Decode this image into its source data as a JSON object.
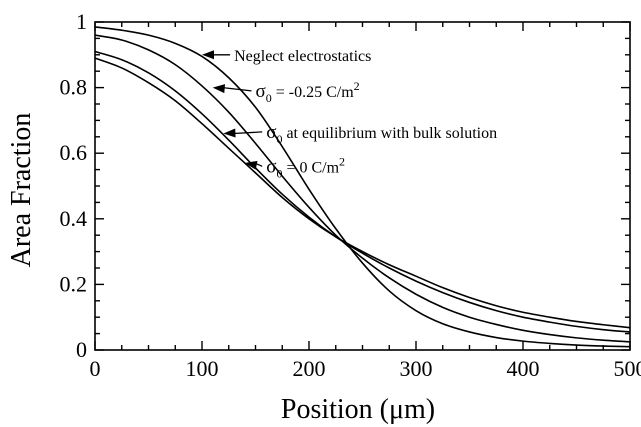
{
  "chart_data": {
    "type": "line",
    "xlabel": "Position (μm)",
    "ylabel": "Area Fraction",
    "xlim": [
      0,
      500
    ],
    "ylim": [
      0,
      1
    ],
    "xticks": [
      "0",
      "100",
      "200",
      "300",
      "400",
      "500"
    ],
    "yticks": [
      "0",
      "0.2",
      "0.4",
      "0.6",
      "0.8",
      "1"
    ],
    "xtick_values": [
      0,
      100,
      200,
      300,
      400,
      500
    ],
    "ytick_values": [
      0,
      0.2,
      0.4,
      0.6,
      0.8,
      1
    ],
    "grid": false,
    "series": [
      {
        "name": "Neglect electrostatics",
        "x": [
          0,
          25,
          50,
          75,
          100,
          125,
          150,
          175,
          200,
          225,
          250,
          275,
          300,
          325,
          350,
          375,
          400,
          425,
          450,
          475,
          500
        ],
        "y": [
          0.985,
          0.975,
          0.96,
          0.935,
          0.895,
          0.83,
          0.74,
          0.62,
          0.49,
          0.37,
          0.265,
          0.18,
          0.12,
          0.08,
          0.055,
          0.038,
          0.027,
          0.02,
          0.015,
          0.012,
          0.01
        ]
      },
      {
        "name": "σ0 = -0.25 C/m2",
        "x": [
          0,
          25,
          50,
          75,
          100,
          125,
          150,
          175,
          200,
          225,
          250,
          275,
          300,
          325,
          350,
          375,
          400,
          425,
          450,
          475,
          500
        ],
        "y": [
          0.96,
          0.945,
          0.915,
          0.87,
          0.805,
          0.725,
          0.63,
          0.53,
          0.435,
          0.35,
          0.28,
          0.22,
          0.17,
          0.13,
          0.1,
          0.078,
          0.06,
          0.047,
          0.037,
          0.03,
          0.025
        ]
      },
      {
        "name": "σ0 at equilibrium with bulk solution",
        "x": [
          0,
          25,
          50,
          75,
          100,
          125,
          150,
          175,
          200,
          225,
          250,
          275,
          300,
          325,
          350,
          375,
          400,
          425,
          450,
          475,
          500
        ],
        "y": [
          0.91,
          0.885,
          0.845,
          0.79,
          0.72,
          0.64,
          0.555,
          0.475,
          0.405,
          0.345,
          0.295,
          0.25,
          0.21,
          0.175,
          0.145,
          0.12,
          0.1,
          0.085,
          0.072,
          0.062,
          0.055
        ]
      },
      {
        "name": "σ0 = 0 C/m2",
        "x": [
          0,
          25,
          50,
          75,
          100,
          125,
          150,
          175,
          200,
          225,
          250,
          275,
          300,
          325,
          350,
          375,
          400,
          425,
          450,
          475,
          500
        ],
        "y": [
          0.89,
          0.86,
          0.815,
          0.76,
          0.69,
          0.615,
          0.54,
          0.465,
          0.4,
          0.345,
          0.3,
          0.26,
          0.225,
          0.19,
          0.16,
          0.135,
          0.115,
          0.1,
          0.087,
          0.077,
          0.068
        ]
      }
    ],
    "annotations": [
      {
        "label": "Neglect electrostatics",
        "points_to_series": 0,
        "at_x": 100,
        "at_y": 0.9,
        "text_x": 130,
        "text_y": 0.9
      },
      {
        "label_sym": "σ",
        "label_sub": "0",
        "label_rest": " = -0.25 C/m",
        "label_sup": "2",
        "points_to_series": 1,
        "at_x": 110,
        "at_y": 0.8,
        "text_x": 150,
        "text_y": 0.79
      },
      {
        "label_sym": "σ",
        "label_sub": "0",
        "label_rest": " at equilibrium with bulk solution",
        "points_to_series": 2,
        "at_x": 120,
        "at_y": 0.66,
        "text_x": 160,
        "text_y": 0.665
      },
      {
        "label_sym": "σ",
        "label_sub": "0",
        "label_rest": " = 0 C/m",
        "label_sup": "2",
        "points_to_series": 3,
        "at_x": 140,
        "at_y": 0.57,
        "text_x": 160,
        "text_y": 0.56
      }
    ]
  }
}
